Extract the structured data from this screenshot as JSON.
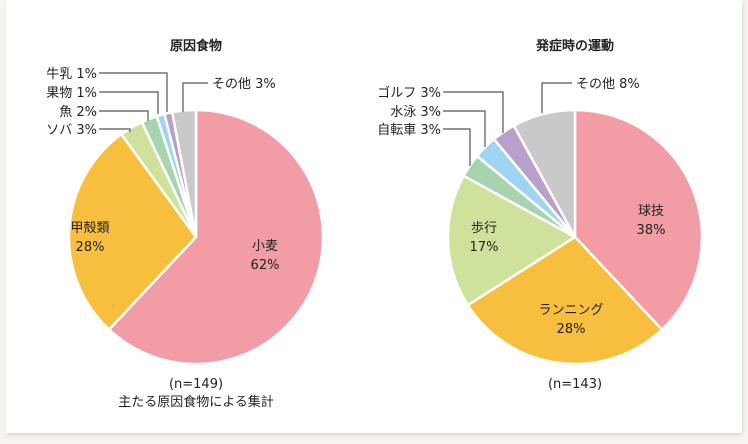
{
  "chart_data": [
    {
      "type": "pie",
      "title": "原因食物",
      "note": "(n=149)",
      "caption": "主たる原因食物による集計",
      "slices": [
        {
          "label": "小麦",
          "value": 62,
          "color": "#f29ca6"
        },
        {
          "label": "甲殻類",
          "value": 28,
          "color": "#f8be3e"
        },
        {
          "label": "ソバ",
          "value": 3,
          "color": "#cfe29b"
        },
        {
          "label": "魚",
          "value": 2,
          "color": "#a7d3ae"
        },
        {
          "label": "果物",
          "value": 1,
          "color": "#9fd5f3"
        },
        {
          "label": "牛乳",
          "value": 1,
          "color": "#b8a0ca"
        },
        {
          "label": "その他",
          "value": 3,
          "color": "#c9c9c9"
        }
      ]
    },
    {
      "type": "pie",
      "title": "発症時の運動",
      "note": "(n=143)",
      "caption": "",
      "slices": [
        {
          "label": "球技",
          "value": 38,
          "color": "#f29ca6"
        },
        {
          "label": "ランニング",
          "value": 28,
          "color": "#f8be3e"
        },
        {
          "label": "歩行",
          "value": 17,
          "color": "#cfe29b"
        },
        {
          "label": "自転車",
          "value": 3,
          "color": "#a7d3ae"
        },
        {
          "label": "水泳",
          "value": 3,
          "color": "#9fd5f3"
        },
        {
          "label": "ゴルフ",
          "value": 3,
          "color": "#b8a0ca"
        },
        {
          "label": "その他",
          "value": 8,
          "color": "#c9c9c9"
        }
      ]
    }
  ]
}
